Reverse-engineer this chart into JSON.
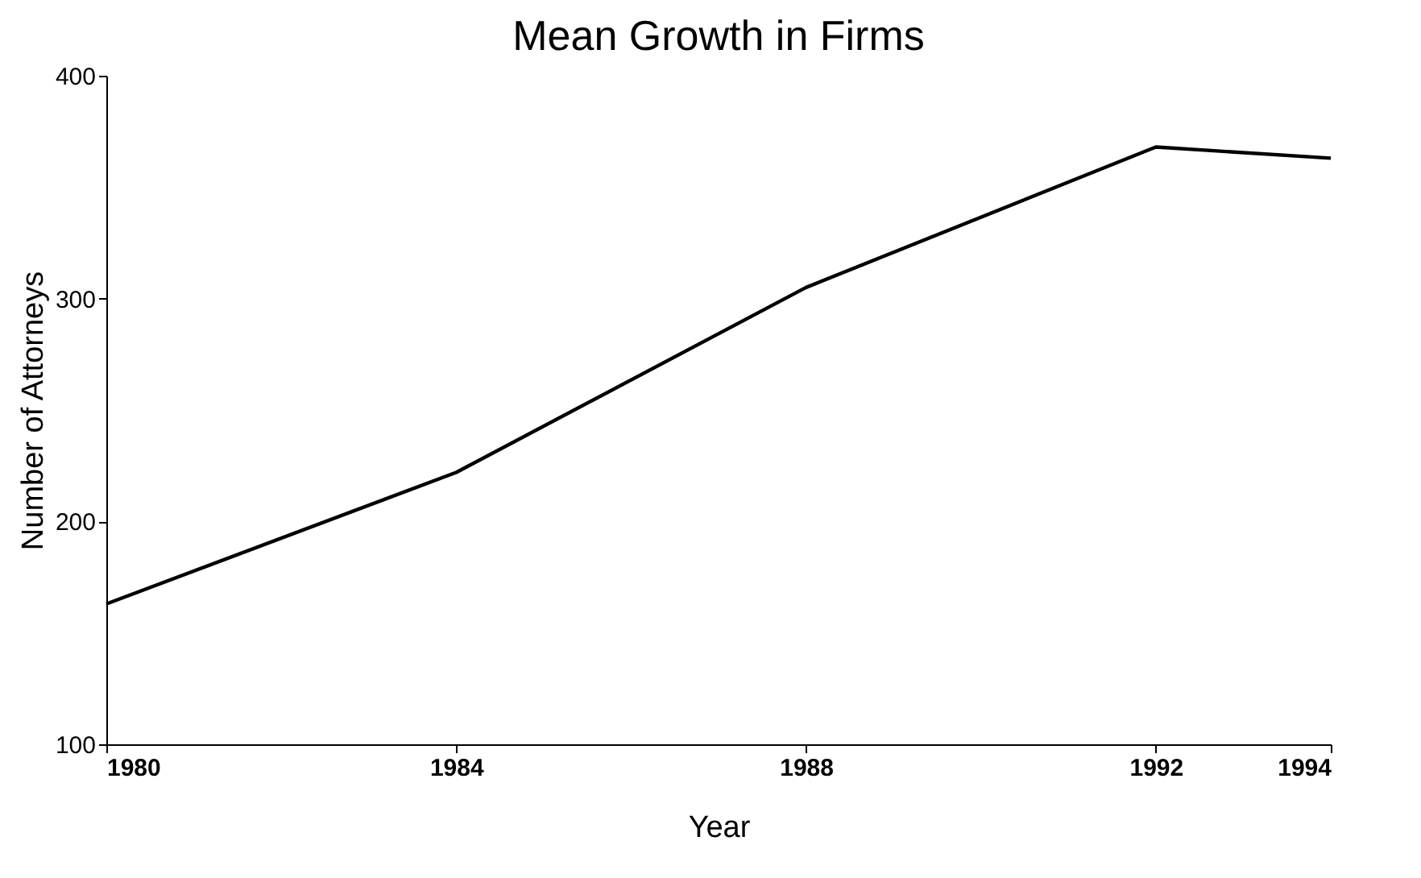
{
  "chart_data": {
    "type": "line",
    "title": "Mean Growth in Firms",
    "xlabel": "Year",
    "ylabel": "Number of Attorneys",
    "x": [
      1980,
      1984,
      1988,
      1992,
      1994
    ],
    "series": [
      {
        "color": "#000000",
        "values": [
          163,
          222,
          305,
          368,
          363
        ]
      }
    ],
    "xlim": [
      1980,
      1994
    ],
    "xticks": [
      1980,
      1984,
      1988,
      1992,
      1994
    ],
    "ylim": [
      100,
      400
    ],
    "yticks": [
      100,
      200,
      300,
      400
    ],
    "grid": false,
    "legend": false,
    "marker": "none",
    "line_style": "solid"
  }
}
